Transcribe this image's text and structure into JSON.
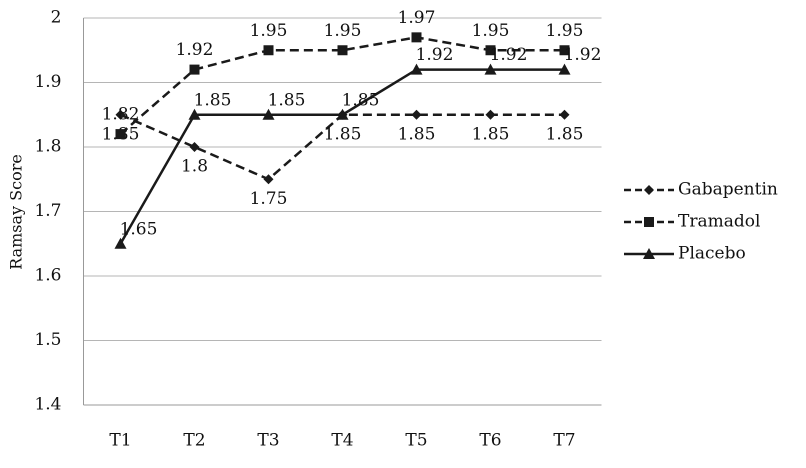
{
  "chart_data": {
    "type": "line",
    "y_label": "Ramsay Score",
    "categories": [
      "T1",
      "T2",
      "T3",
      "T4",
      "T5",
      "T6",
      "T7"
    ],
    "series": [
      {
        "name": "Gabapentin",
        "color": "#1a1a1a",
        "dash": "dashed",
        "marker": "diamond",
        "values": [
          1.85,
          1.8,
          1.75,
          1.85,
          1.85,
          1.85,
          1.85
        ]
      },
      {
        "name": "Tramadol",
        "color": "#1a1a1a",
        "dash": "dashed",
        "marker": "square",
        "values": [
          1.82,
          1.92,
          1.95,
          1.95,
          1.97,
          1.95,
          1.95
        ]
      },
      {
        "name": "Placebo",
        "color": "#1a1a1a",
        "dash": "solid",
        "marker": "triangle",
        "values": [
          1.65,
          1.85,
          1.85,
          1.85,
          1.92,
          1.92,
          1.92
        ]
      }
    ],
    "ylim": [
      1.4,
      2
    ],
    "yticks": [
      1.4,
      1.5,
      1.6,
      1.7,
      1.8,
      1.9,
      2
    ],
    "grid": true,
    "legend": "right"
  }
}
